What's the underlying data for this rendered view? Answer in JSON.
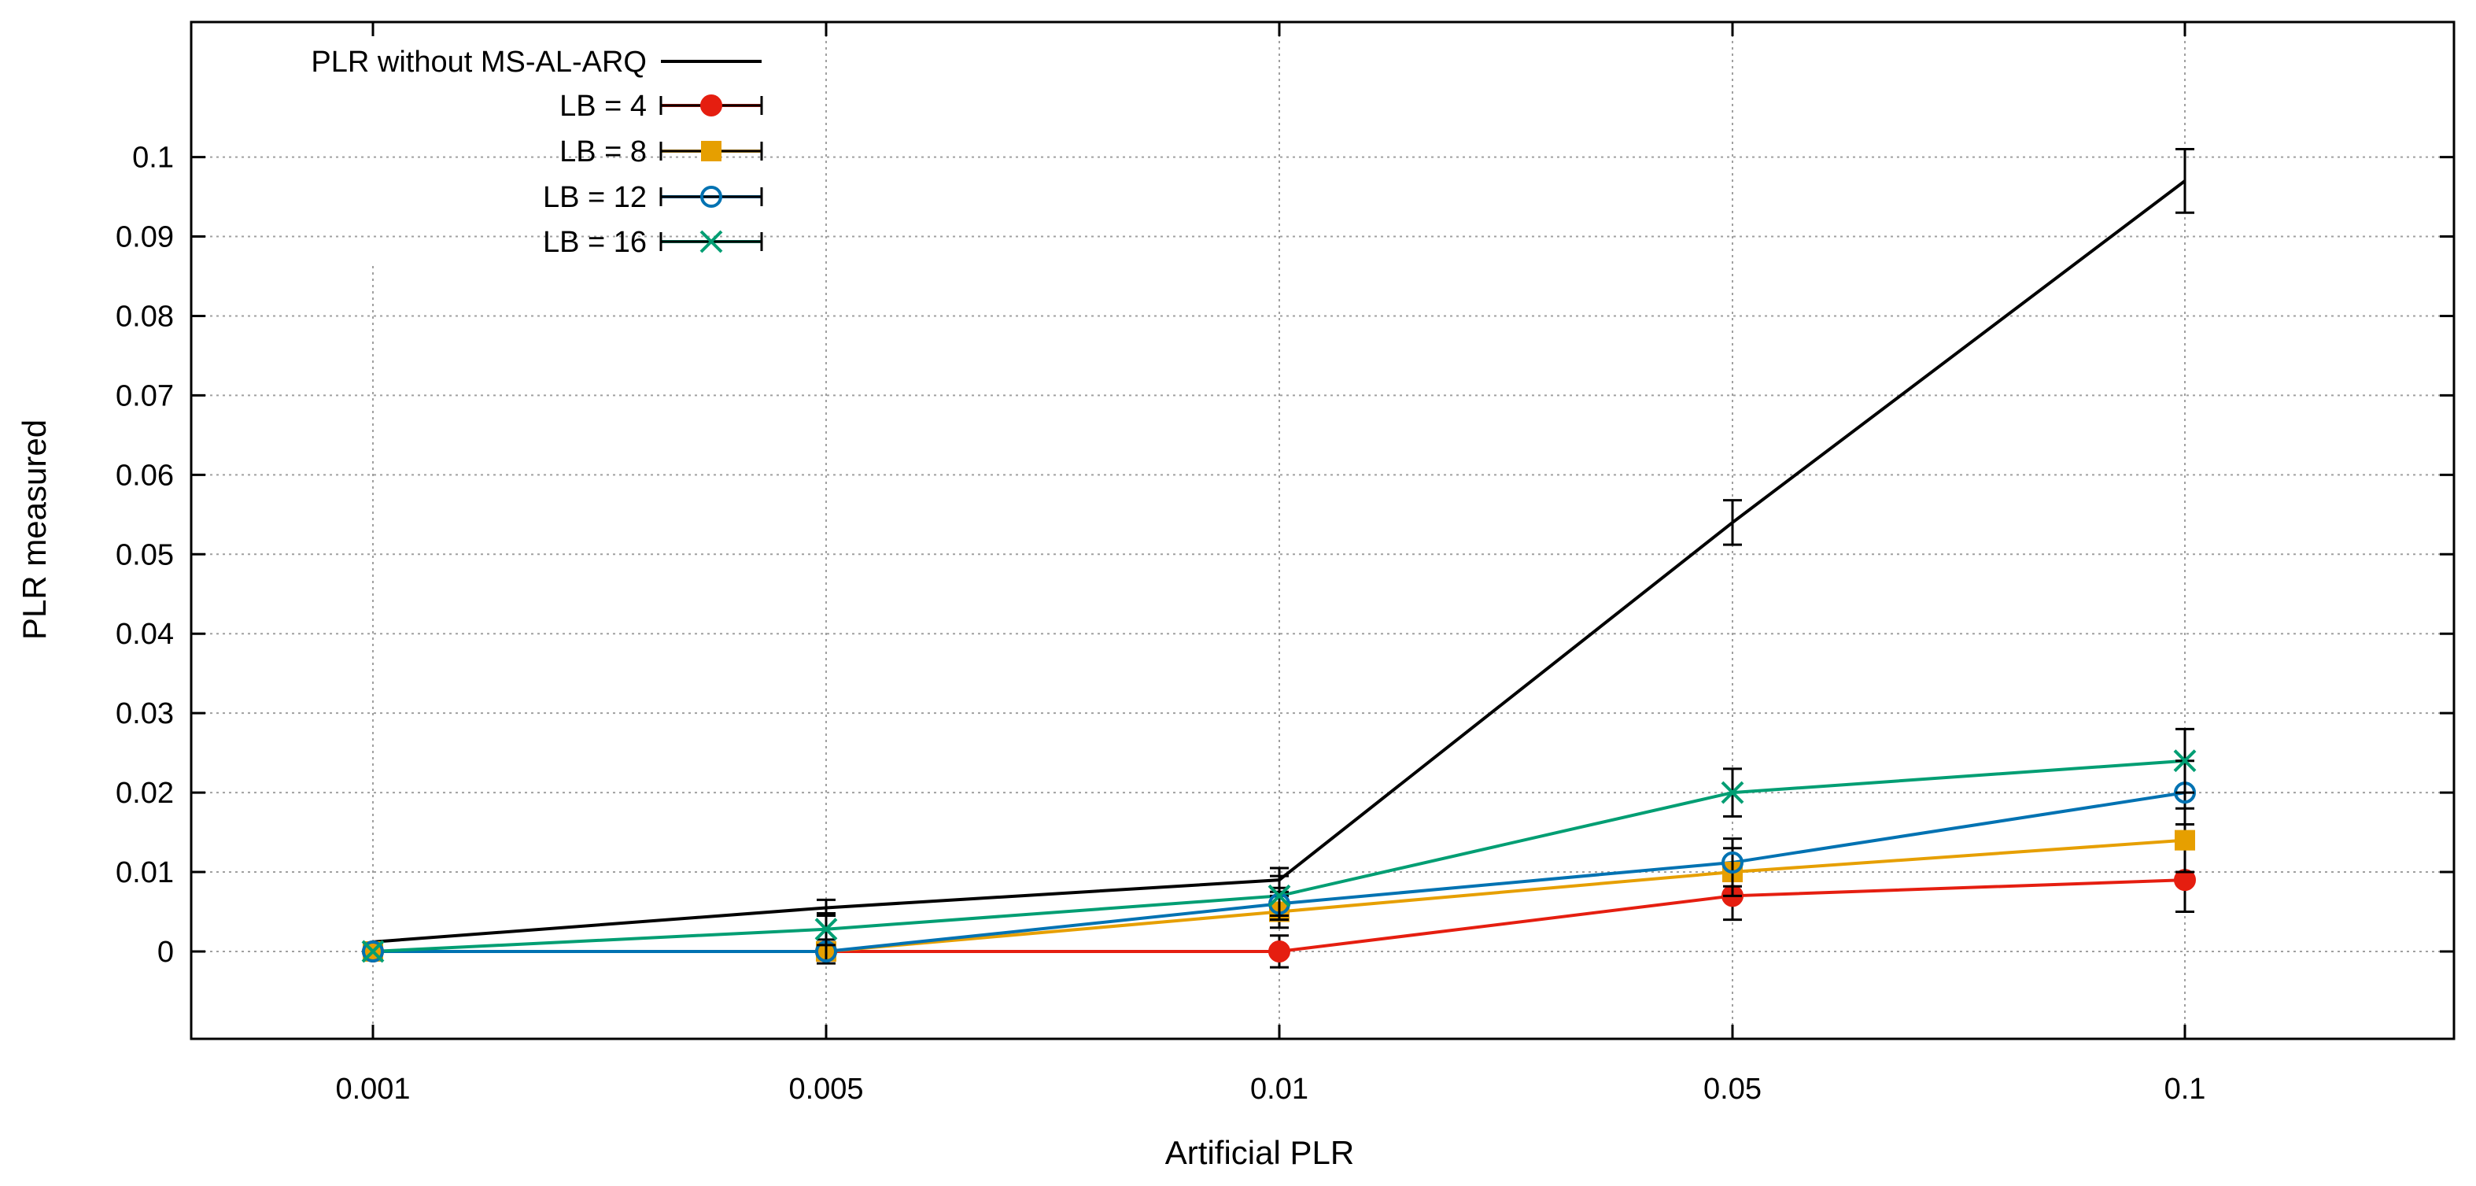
{
  "chart_data": {
    "type": "line",
    "title": "",
    "xlabel": "Artificial PLR",
    "ylabel": "PLR measured",
    "categories": [
      "0.001",
      "0.005",
      "0.01",
      "0.05",
      "0.1"
    ],
    "y_ticks": [
      "0",
      "0.01",
      "0.02",
      "0.03",
      "0.04",
      "0.05",
      "0.06",
      "0.07",
      "0.08",
      "0.09",
      "0.1"
    ],
    "ylim": [
      -0.011,
      0.117
    ],
    "grid": true,
    "legend_position": "top-left",
    "series": [
      {
        "name": "PLR without MS-AL-ARQ",
        "color": "#000000",
        "marker": "none",
        "values": [
          0.0012,
          0.0055,
          0.009,
          0.054,
          0.097
        ],
        "errors": [
          0.0,
          0.001,
          0.0015,
          0.0028,
          0.004
        ]
      },
      {
        "name": "LB = 4",
        "color": "#e51e10",
        "marker": "circle-filled",
        "values": [
          0.0,
          0.0,
          0.0,
          0.007,
          0.009
        ],
        "errors": [
          0.0,
          0.0,
          0.002,
          0.003,
          0.004
        ]
      },
      {
        "name": "LB = 8",
        "color": "#e69f00",
        "marker": "square-filled",
        "values": [
          0.0,
          0.0,
          0.005,
          0.01,
          0.014
        ],
        "errors": [
          0.0,
          0.0,
          0.002,
          0.003,
          0.004
        ]
      },
      {
        "name": "LB = 12",
        "color": "#0072b2",
        "marker": "circle-open",
        "values": [
          0.0,
          0.0,
          0.006,
          0.0112,
          0.02
        ],
        "errors": [
          0.0,
          0.0015,
          0.002,
          0.003,
          0.004
        ]
      },
      {
        "name": "LB = 16",
        "color": "#009e73",
        "marker": "x",
        "values": [
          0.0,
          0.0028,
          0.007,
          0.02,
          0.024
        ],
        "errors": [
          0.0,
          0.002,
          0.0025,
          0.003,
          0.004
        ]
      }
    ]
  }
}
